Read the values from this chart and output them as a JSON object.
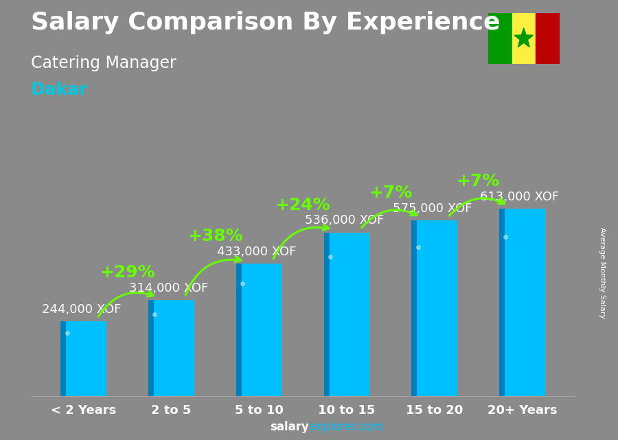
{
  "title_line1": "Salary Comparison By Experience",
  "title_line2": "Catering Manager",
  "title_line3": "Dakar",
  "categories": [
    "< 2 Years",
    "2 to 5",
    "5 to 10",
    "10 to 15",
    "15 to 20",
    "20+ Years"
  ],
  "values": [
    244000,
    314000,
    433000,
    536000,
    575000,
    613000
  ],
  "labels": [
    "244,000 XOF",
    "314,000 XOF",
    "433,000 XOF",
    "536,000 XOF",
    "575,000 XOF",
    "613,000 XOF"
  ],
  "pct_labels": [
    "+29%",
    "+38%",
    "+24%",
    "+7%",
    "+7%"
  ],
  "bar_color_front": "#00bfff",
  "bar_color_side": "#0080bb",
  "bar_color_top": "#55ddff",
  "bg_color": "#888888",
  "ylabel": "Average Monthly Salary",
  "website_bold": "salary",
  "website_light": "explorer.com",
  "ylim": [
    0,
    750000
  ],
  "bar_width": 0.52,
  "title_fontsize": 26,
  "subtitle_fontsize": 17,
  "city_fontsize": 18,
  "city_color": "#00c8e0",
  "label_fontsize": 13,
  "pct_fontsize": 18,
  "cat_fontsize": 13,
  "arrow_color": "#66ff00",
  "label_color": "white",
  "flag_green": "#009A00",
  "flag_yellow": "#FDEF42",
  "flag_red": "#BB0000"
}
